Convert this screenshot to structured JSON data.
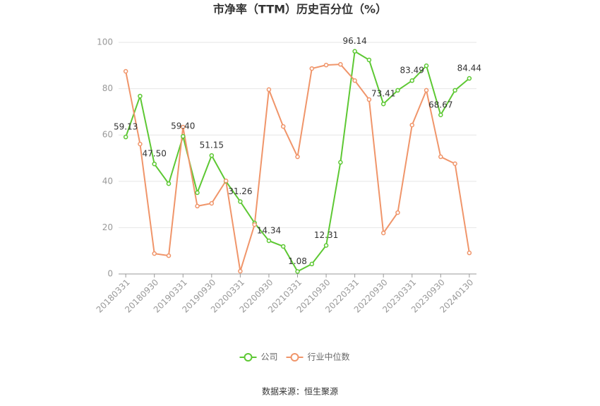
{
  "chart_data": {
    "type": "line",
    "title": "市净率（TTM）历史百分位（%）",
    "categories": [
      "20180331",
      null,
      "20180930",
      null,
      "20190331",
      null,
      "20190930",
      null,
      "20200331",
      null,
      "20200930",
      null,
      "20210331",
      null,
      "20210930",
      null,
      "20220331",
      null,
      "20220930",
      null,
      "20230331",
      null,
      "20230930",
      null,
      "20240130"
    ],
    "series": [
      {
        "name": "公司",
        "color": "#5dc833",
        "values": [
          59.13,
          76.8,
          47.5,
          39.0,
          59.4,
          35.1,
          51.15,
          40.0,
          31.26,
          22.0,
          14.34,
          11.9,
          1.08,
          4.3,
          12.31,
          48.2,
          96.14,
          92.4,
          73.41,
          79.3,
          83.49,
          89.9,
          68.67,
          79.3,
          84.44
        ],
        "value_labels": [
          "59.13",
          null,
          "47.50",
          null,
          "59.40",
          null,
          "51.15",
          null,
          "31.26",
          null,
          "14.34",
          null,
          "1.08",
          null,
          "12.31",
          null,
          "96.14",
          null,
          "73.41",
          null,
          "83.49",
          null,
          "68.67",
          null,
          "84.44"
        ]
      },
      {
        "name": "行业中位数",
        "color": "#f0956a",
        "values": [
          87.5,
          56.1,
          8.8,
          7.9,
          63.4,
          29.3,
          30.5,
          40.2,
          1.2,
          21.3,
          79.6,
          63.7,
          50.6,
          88.7,
          90.2,
          90.5,
          83.5,
          75.3,
          17.7,
          26.5,
          64.3,
          79.3,
          50.6,
          47.6,
          9.1
        ]
      }
    ],
    "ylim": [
      0,
      100
    ],
    "yticks": [
      0,
      20,
      40,
      60,
      80,
      100
    ],
    "grid": true,
    "legend": "bottom",
    "source": "数据来源：恒生聚源"
  }
}
